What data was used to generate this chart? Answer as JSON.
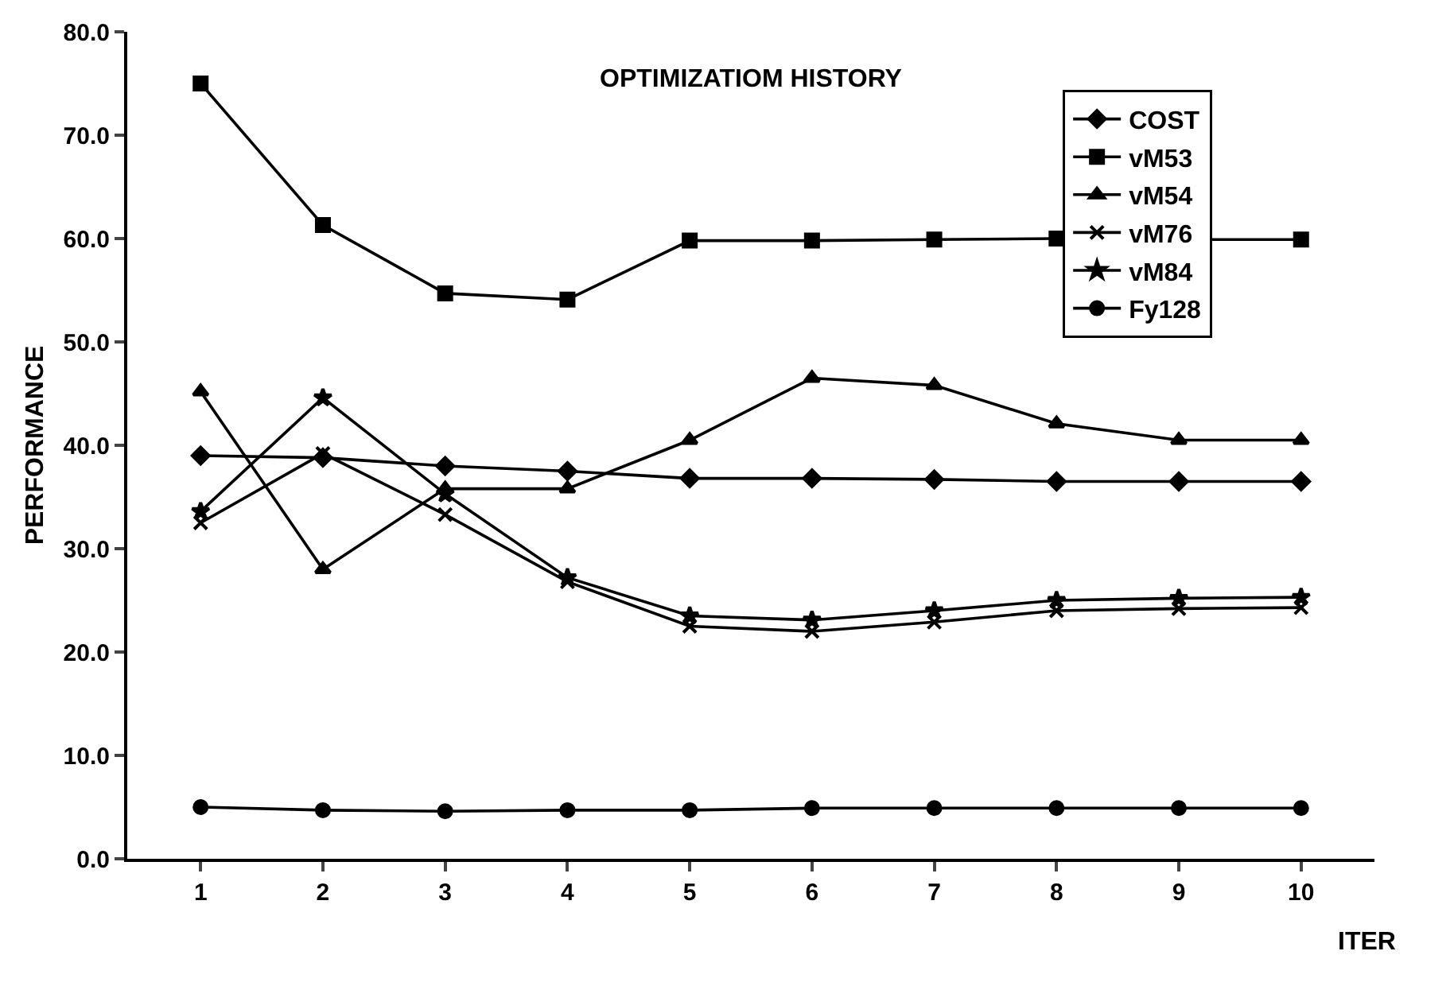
{
  "chart_data": {
    "type": "line",
    "title": "OPTIMIZATIOM HISTORY",
    "xlabel": "ITER",
    "ylabel": "PERFORMANCE",
    "x": [
      1,
      2,
      3,
      4,
      5,
      6,
      7,
      8,
      9,
      10
    ],
    "xlim": [
      0.4,
      10.6
    ],
    "xticks": [
      1,
      2,
      3,
      4,
      5,
      6,
      7,
      8,
      9,
      10
    ],
    "ylim": [
      0,
      80
    ],
    "yticks": [
      {
        "value": 0,
        "label": "0.0"
      },
      {
        "value": 10,
        "label": "10.0"
      },
      {
        "value": 20,
        "label": "20.0"
      },
      {
        "value": 30,
        "label": "30.0"
      },
      {
        "value": 40,
        "label": "40.0"
      },
      {
        "value": 50,
        "label": "50.0"
      },
      {
        "value": 60,
        "label": "60.0"
      },
      {
        "value": 70,
        "label": "70.0"
      },
      {
        "value": 80,
        "label": "80.0"
      }
    ],
    "grid": false,
    "legend": "top right",
    "line_style": "solid",
    "series": [
      {
        "name": "COST",
        "color": "#000000",
        "marker": "diamond",
        "values": [
          39,
          38.8,
          38,
          37.5,
          36.8,
          36.8,
          36.7,
          36.5,
          36.5,
          36.5
        ]
      },
      {
        "name": "vM53",
        "color": "#000000",
        "marker": "square",
        "values": [
          75,
          61.3,
          54.7,
          54.1,
          59.8,
          59.8,
          59.9,
          60,
          59.9,
          59.9
        ]
      },
      {
        "name": "vM54",
        "color": "#000000",
        "marker": "triangle",
        "values": [
          45.2,
          28,
          35.8,
          35.8,
          40.5,
          46.5,
          45.8,
          42.1,
          40.5,
          40.5
        ]
      },
      {
        "name": "vM76",
        "color": "#000000",
        "marker": "cross",
        "values": [
          32.5,
          39.2,
          33.3,
          26.8,
          22.5,
          22,
          22.9,
          24,
          24.2,
          24.3
        ]
      },
      {
        "name": "vM84",
        "color": "#000000",
        "marker": "star",
        "values": [
          33.6,
          44.6,
          35.3,
          27.2,
          23.5,
          23.1,
          24,
          25,
          25.2,
          25.3
        ]
      },
      {
        "name": "Fy128",
        "color": "#000000",
        "marker": "circle",
        "values": [
          5,
          4.7,
          4.6,
          4.7,
          4.7,
          4.9,
          4.9,
          4.9,
          4.9,
          4.9
        ]
      }
    ]
  }
}
